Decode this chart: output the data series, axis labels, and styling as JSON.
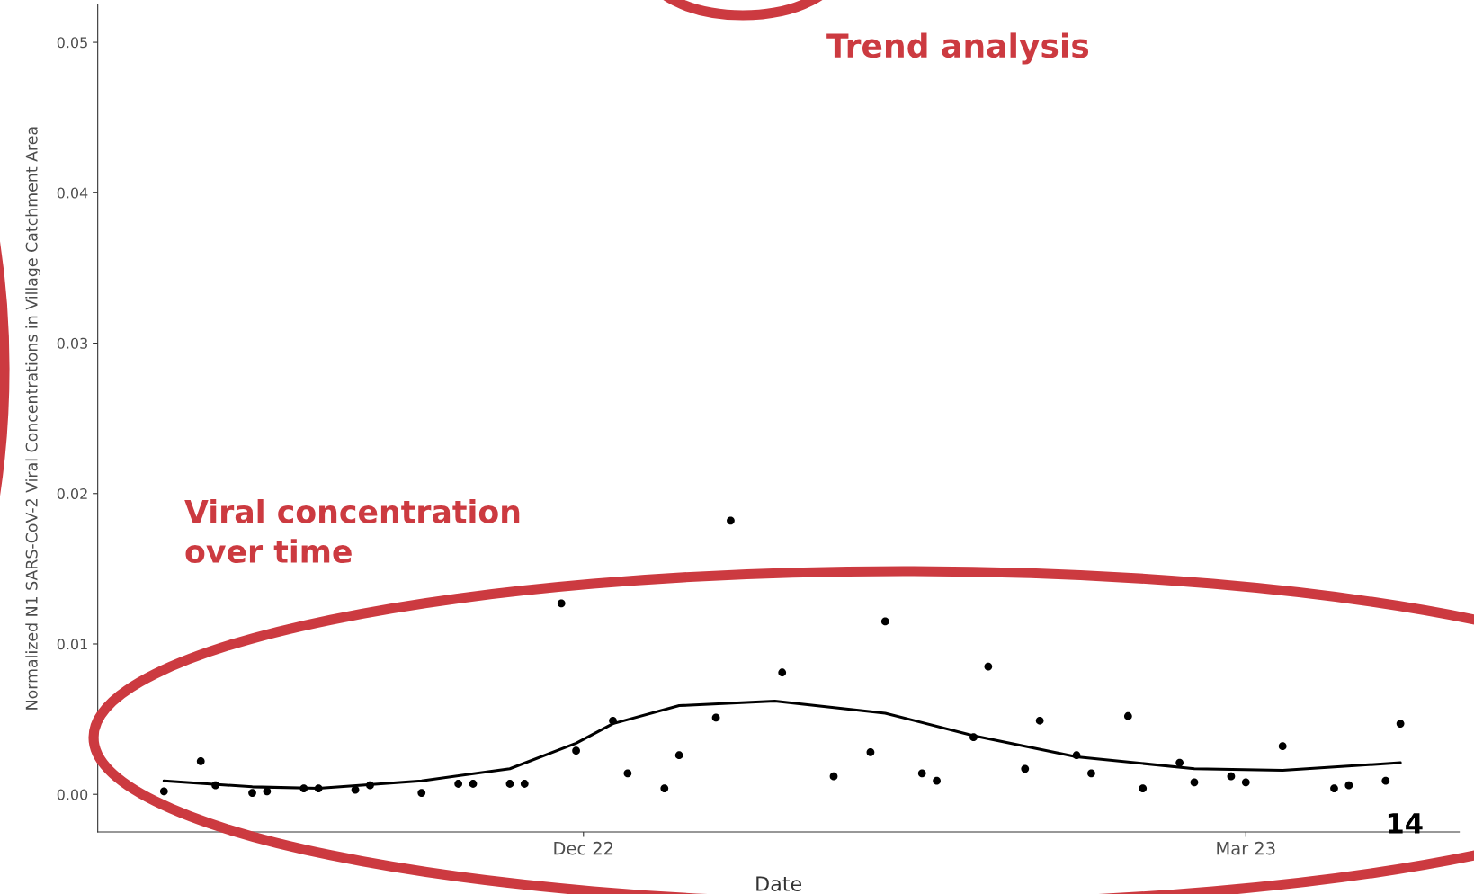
{
  "chart_data": {
    "type": "scatter",
    "xlabel": "Date",
    "ylabel": "Normalized N1 SARS-CoV-2 Viral Concentrations in Village Catchment Area",
    "annotations": [
      "Trend analysis",
      "Viral concentration\nover time",
      "14"
    ],
    "series": [
      {
        "color": "#000000",
        "marker": "circle",
        "x": [
          "2022-10-05",
          "2022-10-10",
          "2022-10-12",
          "2022-10-17",
          "2022-10-19",
          "2022-10-24",
          "2022-10-26",
          "2022-10-31",
          "2022-11-02",
          "2022-11-09",
          "2022-11-14",
          "2022-11-16",
          "2022-11-21",
          "2022-11-23",
          "2022-11-28",
          "2022-11-30",
          "2022-12-05",
          "2022-12-07",
          "2022-12-12",
          "2022-12-14",
          "2022-12-19",
          "2022-12-21",
          "2022-12-28",
          "2023-01-04",
          "2023-01-09",
          "2023-01-11",
          "2023-01-16",
          "2023-01-18",
          "2023-01-23",
          "2023-01-25",
          "2023-01-30",
          "2023-02-01",
          "2023-02-06",
          "2023-02-08",
          "2023-02-13",
          "2023-02-15",
          "2023-02-20",
          "2023-02-22",
          "2023-02-27",
          "2023-03-01",
          "2023-03-06",
          "2023-03-13",
          "2023-03-15",
          "2023-03-20",
          "2023-03-22"
        ],
        "values": [
          0.0002,
          0.0022,
          0.0006,
          0.0001,
          0.0002,
          0.0004,
          0.0004,
          0.0003,
          0.0006,
          0.0001,
          0.0007,
          0.0007,
          0.0007,
          0.0007,
          0.0127,
          0.0029,
          0.0049,
          0.0014,
          0.0004,
          0.0026,
          0.0051,
          0.0182,
          0.0081,
          0.0012,
          0.0028,
          0.0115,
          0.0014,
          0.0009,
          0.0038,
          0.0085,
          0.0017,
          0.0049,
          0.0026,
          0.0014,
          0.0052,
          0.0004,
          0.0021,
          0.0008,
          0.0012,
          0.0008,
          0.0032,
          0.0004,
          0.0006,
          0.0009,
          0.0047
        ]
      },
      {
        "type": "line",
        "color": "#000000",
        "marker": "none",
        "line_style": "solid",
        "x": [
          "2022-10-05",
          "2022-10-17",
          "2022-10-26",
          "2022-11-09",
          "2022-11-21",
          "2022-11-30",
          "2022-12-05",
          "2022-12-14",
          "2022-12-27",
          "2023-01-11",
          "2023-01-23",
          "2023-02-06",
          "2023-02-22",
          "2023-03-06",
          "2023-03-22"
        ],
        "values": [
          0.0009,
          0.0005,
          0.0004,
          0.0009,
          0.0017,
          0.0034,
          0.0047,
          0.0059,
          0.0062,
          0.0054,
          0.0039,
          0.0025,
          0.0017,
          0.0016,
          0.0021
        ]
      }
    ],
    "xlim": [
      "2022-09-26",
      "2023-03-30"
    ],
    "xticks": [
      {
        "value": "2022-12-01",
        "label": "Dec 22"
      },
      {
        "value": "2023-03-01",
        "label": "Mar 23"
      }
    ],
    "ylim": [
      -0.0025,
      0.0525
    ],
    "yticks": [
      {
        "value": 0,
        "label": "0.00"
      },
      {
        "value": 0.01,
        "label": "0.01"
      },
      {
        "value": 0.02,
        "label": "0.02"
      },
      {
        "value": 0.03,
        "label": "0.03"
      },
      {
        "value": 0.04,
        "label": "0.04"
      },
      {
        "value": 0.05,
        "label": "0.05"
      }
    ],
    "grid": false,
    "legend": false
  }
}
